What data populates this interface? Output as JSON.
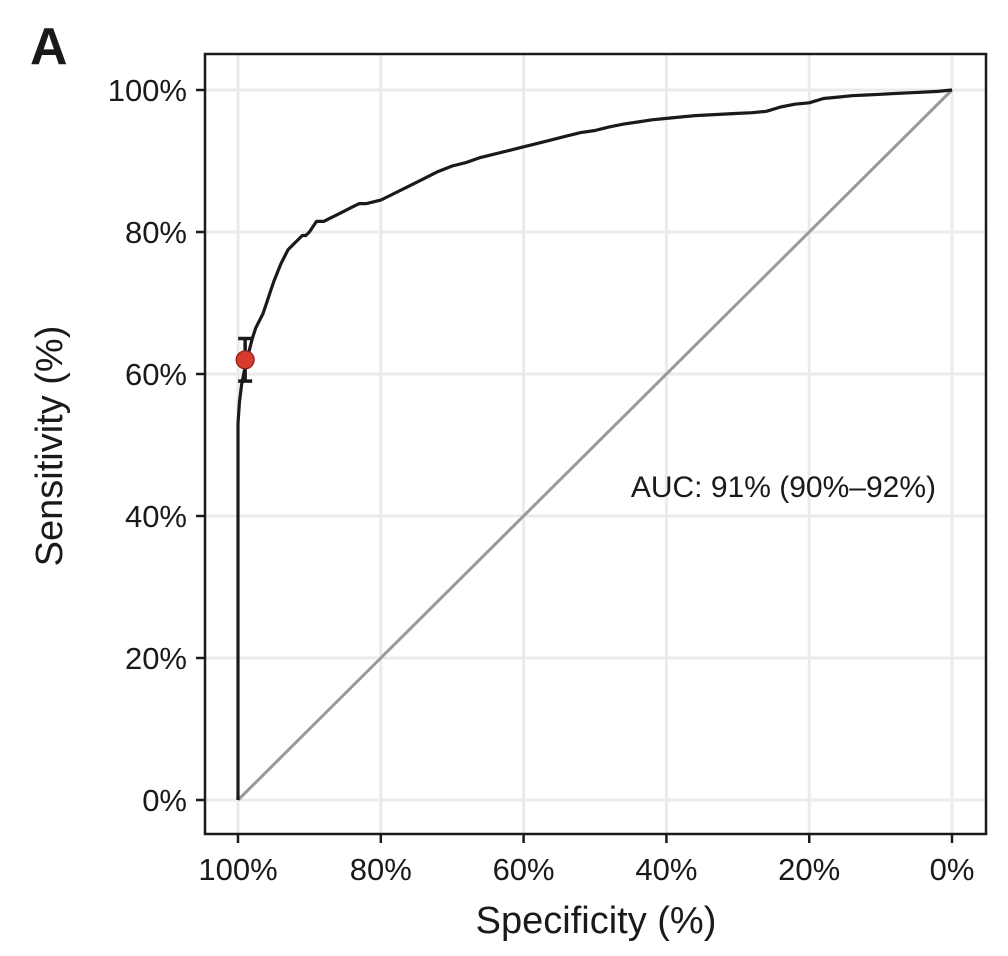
{
  "panel_label": "A",
  "chart_data": {
    "type": "line",
    "xlabel": "Specificity (%)",
    "ylabel": "Sensitivity (%)",
    "xlim": [
      100,
      0
    ],
    "ylim": [
      0,
      100
    ],
    "x_reversed": true,
    "x_ticks": [
      100,
      80,
      60,
      40,
      20,
      0
    ],
    "x_tick_labels": [
      "100%",
      "80%",
      "60%",
      "40%",
      "20%",
      "0%"
    ],
    "y_ticks": [
      0,
      20,
      40,
      60,
      80,
      100
    ],
    "y_tick_labels": [
      "0%",
      "20%",
      "40%",
      "60%",
      "80%",
      "100%"
    ],
    "grid": true,
    "annotation": "AUC: 91% (90%–92%)",
    "series": [
      {
        "specificity": [
          100,
          100,
          99.8,
          99.5,
          99.0,
          98.5,
          98.0,
          97.5,
          97.0,
          96.5,
          96.0,
          95.5,
          95.0,
          94.0,
          93.0,
          92.0,
          91.5,
          91.0,
          90.5,
          90.0,
          89.0,
          88.0,
          87.0,
          86.0,
          85.0,
          84.0,
          83.0,
          82.0,
          80.0,
          78.0,
          76.0,
          74.0,
          72.0,
          70.0,
          68.0,
          66.0,
          64.0,
          62.0,
          60.0,
          58.0,
          56.0,
          54.0,
          52.0,
          50.0,
          48.0,
          46.0,
          44.0,
          42.0,
          40.0,
          38.0,
          36.0,
          34.0,
          32.0,
          30.0,
          28.0,
          26.0,
          24.0,
          22.0,
          20.0,
          18.0,
          16.0,
          14.0,
          12.0,
          10.0,
          8.0,
          6.0,
          4.0,
          2.0,
          0
        ],
        "sensitivity": [
          0,
          53,
          56,
          58.5,
          61,
          63,
          65,
          66.5,
          67.5,
          68.5,
          70,
          71.5,
          73,
          75.5,
          77.5,
          78.5,
          79,
          79.5,
          79.5,
          80,
          81.5,
          81.5,
          82,
          82.5,
          83,
          83.5,
          84,
          84,
          84.5,
          85.5,
          86.5,
          87.5,
          88.5,
          89.3,
          89.8,
          90.5,
          91,
          91.5,
          92,
          92.5,
          93,
          93.5,
          94,
          94.3,
          94.8,
          95.2,
          95.5,
          95.8,
          96,
          96.2,
          96.4,
          96.5,
          96.6,
          96.7,
          96.8,
          97,
          97.6,
          98.0,
          98.2,
          98.8,
          99.0,
          99.2,
          99.3,
          99.4,
          99.5,
          99.6,
          99.7,
          99.8,
          100
        ]
      },
      {
        "specificity": [
          100,
          0
        ],
        "sensitivity": [
          0,
          100
        ]
      }
    ],
    "highlighted_point": {
      "specificity": 99,
      "sensitivity": 62,
      "ci_low": 59,
      "ci_high": 65,
      "color": "#d93a2e"
    },
    "colors": {
      "roc_curve": "#1a1a1a",
      "reference_line": "#999999",
      "grid": "#ebebeb"
    }
  }
}
